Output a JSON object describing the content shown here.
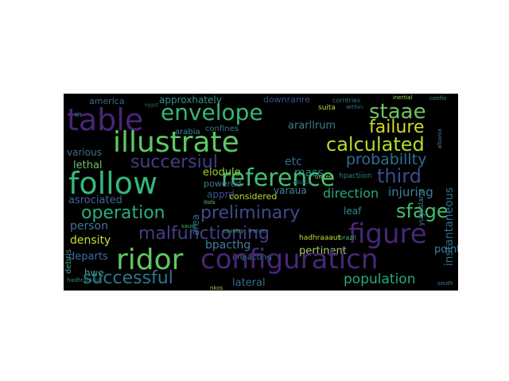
{
  "wordcloud": {
    "words": {
      "table": "table",
      "envelope": "envelope",
      "illustrate": "illustrate",
      "staae": "staae",
      "failure": "failure",
      "calculated": "calculated",
      "follow": "follow",
      "reference": "reference",
      "third": "third",
      "succersiul": "succersiul",
      "probabillty": "probabillty",
      "operation": "operation",
      "preliminary": "preliminary",
      "sfage": "sfage",
      "malfunctioning": "malfunctioning",
      "figure": "figure",
      "ridor": "ridor",
      "configuraticn": "configuraticn",
      "successful": "successful",
      "population": "population",
      "instantaneous": "instantaneous",
      "direction": "direction",
      "injuring": "injuring",
      "america": "america",
      "approxhately": "approxhately",
      "downranre": "downranre",
      "corntries": "corntries",
      "arabia": "arabia",
      "confines": "confines",
      "etc": "etc",
      "ararllrum": "ararllrum",
      "mass": "mass",
      "various": "various",
      "lethal": "lethal",
      "elodule": "elodule",
      "powered": "powered",
      "varaua": "varaua",
      "asrociated": "asrociated",
      "apprd": "apprd",
      "considered": "considered",
      "person": "person",
      "leaf": "leaf",
      "density": "density",
      "bpacthg": "bpacthg",
      "departs": "departs",
      "impacting": "impacting",
      "pertinent": "pertinent",
      "point": "point",
      "hwe": "hwe",
      "hadhramaut": "hadhramaut",
      "lateral": "lateral",
      "debris": "debris",
      "area": "area",
      "suita": "suita",
      "inertial": "inertial",
      "hpactiion": "hpactiion",
      "yugoslaria": "yugoslaria",
      "brazil": "brazil",
      "albania": "albania",
      "egypt": "egypt",
      "abaco": "abaco",
      "within": "within",
      "united": "united",
      "saudi": "saudi",
      "france": "france",
      "country": "country",
      "lift": "lift",
      "confin": "confin",
      "itols": "itols",
      "nkos": "nkos",
      "hadhraaaut": "hadhraaaut",
      "south": "south"
    }
  }
}
